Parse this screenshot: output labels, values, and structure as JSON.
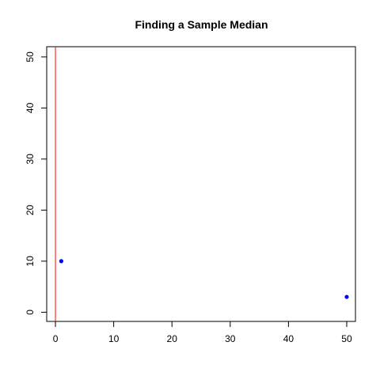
{
  "chart_data": {
    "type": "scatter",
    "title": "Finding a Sample Median",
    "xlabel": "",
    "ylabel": "",
    "xlim": [
      -1.5,
      51.5
    ],
    "ylim": [
      -1.8,
      52
    ],
    "x_ticks": [
      0,
      10,
      20,
      30,
      40,
      50
    ],
    "y_ticks": [
      0,
      10,
      20,
      30,
      40,
      50
    ],
    "points": [
      {
        "x": 1,
        "y": 10
      },
      {
        "x": 50,
        "y": 3
      }
    ],
    "vertical_lines": [
      0
    ],
    "grid": false,
    "colors": {
      "points": "#0000ff",
      "vertical_line": "#ff0000",
      "axes": "#000000"
    }
  }
}
